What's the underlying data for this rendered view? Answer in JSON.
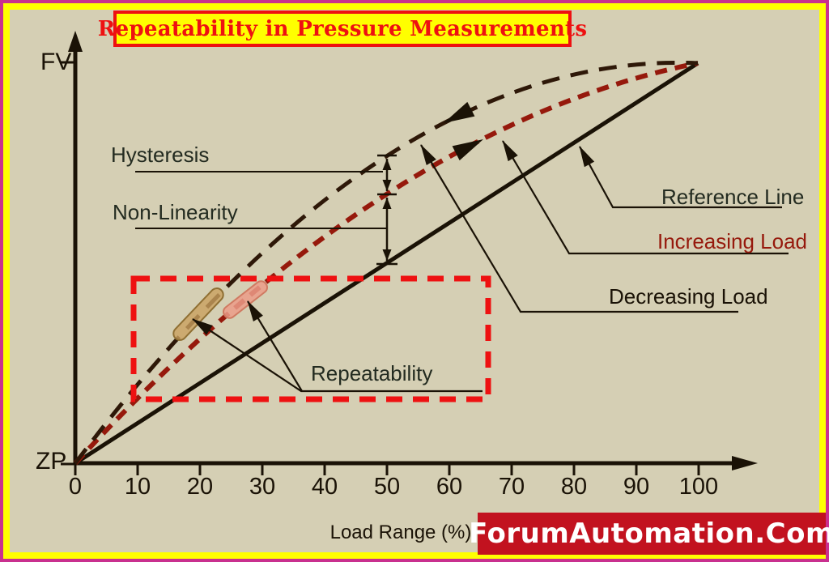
{
  "frame": {
    "border_outer_color": "#c9308f",
    "border_inner_color": "#ffff00",
    "background": "#d5cfb4"
  },
  "title": {
    "text": "Repeatability in Pressure Measurements",
    "color": "#ee1111",
    "background": "#ffff00",
    "border_color": "#ee1111"
  },
  "watermark": {
    "text": "ForumAutomation.Com",
    "background": "#c2121f",
    "color": "#ffffff"
  },
  "axes": {
    "x_label": "Load Range (%)",
    "x_ticks": [
      "0",
      "10",
      "20",
      "30",
      "40",
      "50",
      "60",
      "70",
      "80",
      "90",
      "100"
    ],
    "y_top_label": "FV",
    "y_bottom_label": "ZP"
  },
  "annotations": {
    "hysteresis": "Hysteresis",
    "non_linearity": "Non-Linearity",
    "repeatability": "Repeatability"
  },
  "legend": {
    "reference_line": {
      "label": "Reference Line",
      "text_color": "#232b20",
      "line_color": "#1a1206"
    },
    "increasing_load": {
      "label": "Increasing Load",
      "text_color": "#96190c",
      "line_color": "#96190c"
    },
    "decreasing_load": {
      "label": "Decreasing Load",
      "text_color": "#1a1206",
      "line_color": "#2e1808"
    }
  },
  "highlight_box_color": "#ee1111",
  "chart_data": {
    "type": "line",
    "title": "Repeatability in Pressure Measurements",
    "xlabel": "Load Range (%)",
    "x_range": [
      0,
      100
    ],
    "y_axis_labels": {
      "bottom": "ZP",
      "top": "FV"
    },
    "grid": false,
    "x": [
      0,
      10,
      20,
      30,
      40,
      50,
      60,
      70,
      80,
      90,
      100
    ],
    "series": [
      {
        "name": "Reference Line",
        "style": "solid",
        "color": "#1a1206",
        "values": [
          0,
          10,
          20,
          30,
          40,
          50,
          60,
          70,
          80,
          90,
          100
        ]
      },
      {
        "name": "Increasing Load",
        "style": "dashed",
        "color": "#96190c",
        "values": [
          0,
          16.2,
          31.0,
          44.4,
          56.5,
          67.2,
          76.5,
          84.4,
          91.0,
          96.2,
          100
        ]
      },
      {
        "name": "Decreasing Load",
        "style": "dashed",
        "color": "#2e1808",
        "values": [
          0,
          19.6,
          37.1,
          52.4,
          65.6,
          76.7,
          85.6,
          92.4,
          97.1,
          99.6,
          100
        ]
      }
    ],
    "annotations": [
      {
        "name": "Hysteresis",
        "at_x": 50,
        "between": [
          "Decreasing Load",
          "Increasing Load"
        ]
      },
      {
        "name": "Non-Linearity",
        "at_x": 50,
        "between": [
          "Increasing Load",
          "Reference Line"
        ]
      },
      {
        "name": "Repeatability",
        "x_region": [
          15,
          30
        ],
        "note": "highlighted segments on increasing and decreasing load curves inside red dashed box"
      }
    ]
  }
}
